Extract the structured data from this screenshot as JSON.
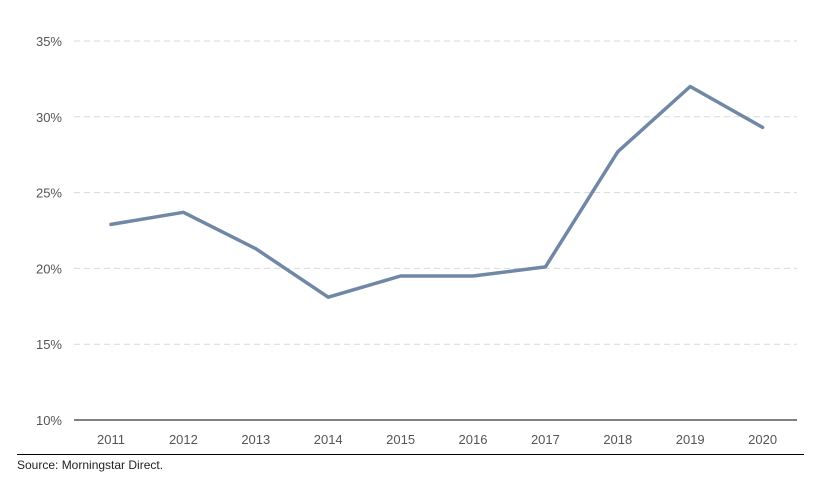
{
  "chart_data": {
    "type": "line",
    "title": "",
    "xlabel": "",
    "ylabel": "",
    "categories": [
      "2011",
      "2012",
      "2013",
      "2014",
      "2015",
      "2016",
      "2017",
      "2018",
      "2019",
      "2020"
    ],
    "series": [
      {
        "values": [
          22.9,
          23.7,
          21.3,
          18.1,
          19.5,
          19.5,
          20.1,
          27.7,
          32.0,
          29.3
        ]
      }
    ],
    "ylim": [
      10,
      35
    ],
    "yticks": [
      10,
      15,
      20,
      25,
      30,
      35
    ],
    "ytick_labels": [
      "10%",
      "15%",
      "20%",
      "25%",
      "30%",
      "35%"
    ],
    "grid": "horizontal dashed",
    "line_color": "#7088a6",
    "grid_color": "#d9d9d9",
    "source": "Source: Morningstar Direct."
  }
}
